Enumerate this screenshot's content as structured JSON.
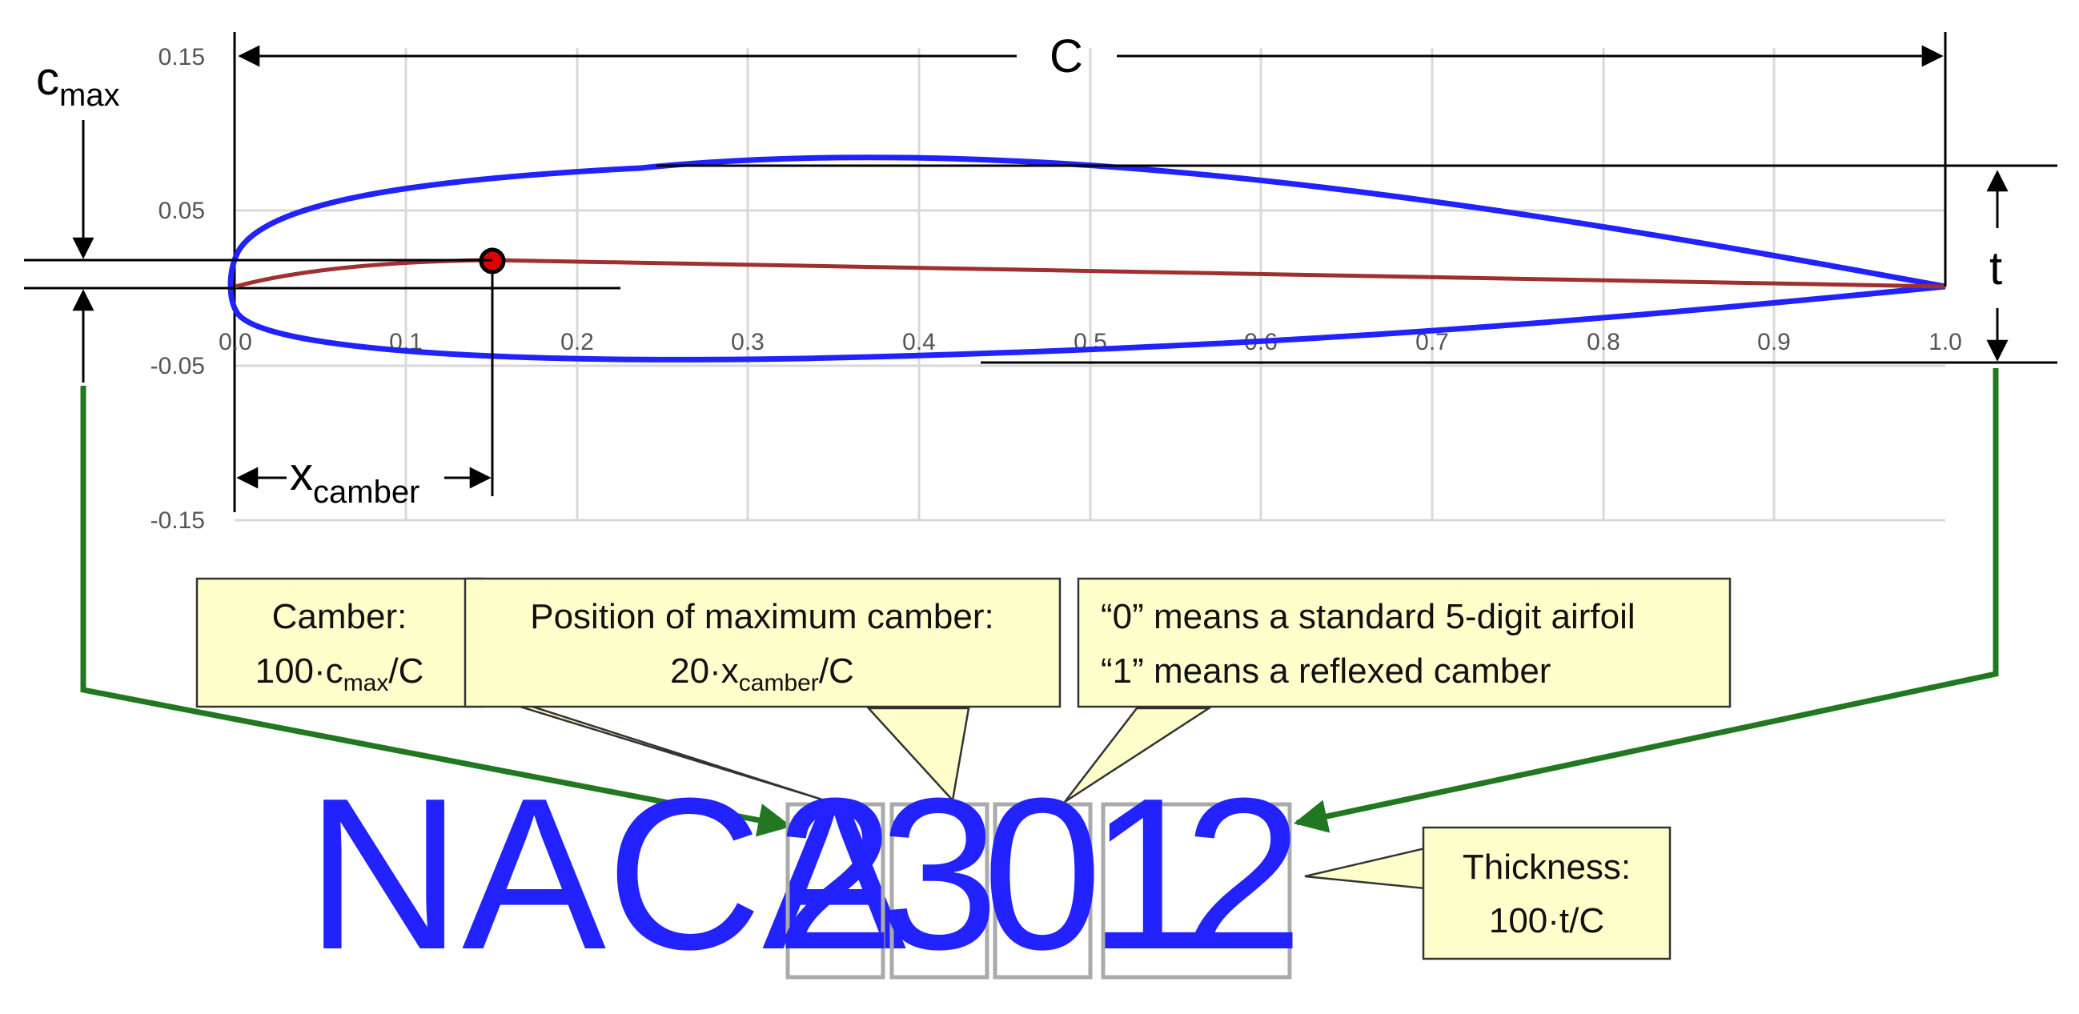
{
  "axes": {
    "x_ticks": [
      "0.0",
      "0.1",
      "0.2",
      "0.3",
      "0.4",
      "0.5",
      "0.6",
      "0.7",
      "0.8",
      "0.9",
      "1.0"
    ],
    "y_ticks": [
      "0.15",
      "0.05",
      "-0.05",
      "-0.15"
    ]
  },
  "dimensions": {
    "chord": "C",
    "cmax_main": "c",
    "cmax_sub": "max",
    "thickness": "t",
    "xcamber_main": "x",
    "xcamber_sub": "camber"
  },
  "designation": {
    "prefix": "NACA",
    "digits": [
      "2",
      "3",
      "0",
      "1",
      "2"
    ]
  },
  "callouts": {
    "camber": {
      "line1": "Camber:",
      "line2_a": "100·c",
      "line2_sub": "max",
      "line2_b": "/C"
    },
    "position": {
      "line1": "Position of maximum camber:",
      "line2_a": "20·x",
      "line2_sub": "camber",
      "line2_b": "/C"
    },
    "reflex": {
      "line1": "“0” means a standard 5-digit airfoil",
      "line2": "“1” means a reflexed camber"
    },
    "thickness": {
      "line1": "Thickness:",
      "line2": "100·t/C"
    }
  },
  "colors": {
    "airfoil": "#2222ff",
    "camber_line": "#a03030",
    "max_camber_point": "#e00000",
    "arrows": "#217821",
    "callout_fill": "#ffffcc",
    "grid": "#d9d9d9"
  }
}
